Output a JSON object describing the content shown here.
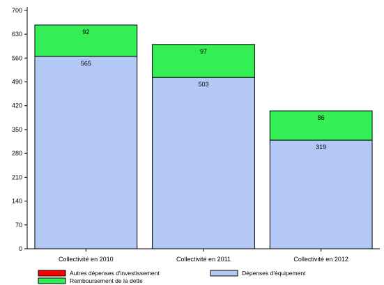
{
  "chart_data": {
    "type": "bar",
    "stacked": true,
    "categories": [
      "Collectivité en 2010",
      "Collectivité en 2011",
      "Collectivité en 2012"
    ],
    "series": [
      {
        "name": "Autres dépenses d'investissement",
        "color": "#ff0000",
        "values": [
          0,
          0,
          0
        ],
        "show_labels": false
      },
      {
        "name": "Dépenses d'équipement",
        "color": "#b4c8f5",
        "values": [
          565,
          503,
          319
        ],
        "show_labels": true
      },
      {
        "name": "Remboursement de la dette",
        "color": "#33ee55",
        "values": [
          92,
          97,
          86
        ],
        "show_labels": true
      }
    ],
    "yticks": [
      0,
      70,
      140,
      210,
      280,
      350,
      420,
      490,
      560,
      630,
      700
    ],
    "ylim": [
      0,
      710
    ],
    "grid": false,
    "legend_position": "bottom-left"
  }
}
